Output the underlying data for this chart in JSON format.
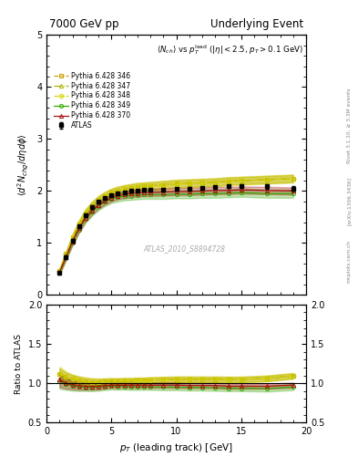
{
  "title_left": "7000 GeV pp",
  "title_right": "Underlying Event",
  "ylabel_main": "\\langle d^2 N_{chg}/d\\eta d\\phi \\rangle",
  "ylabel_ratio": "Ratio to ATLAS",
  "xlabel": "p_{T} (leading track) [GeV]",
  "watermark": "ATLAS_2010_S8894728",
  "pt_atlas": [
    1.0,
    1.5,
    2.0,
    2.5,
    3.0,
    3.5,
    4.0,
    4.5,
    5.0,
    5.5,
    6.0,
    6.5,
    7.0,
    7.5,
    8.0,
    9.0,
    10.0,
    11.0,
    12.0,
    13.0,
    14.0,
    15.0,
    17.0,
    19.0
  ],
  "nch_atlas": [
    0.42,
    0.73,
    1.05,
    1.32,
    1.54,
    1.69,
    1.8,
    1.87,
    1.92,
    1.96,
    1.98,
    2.0,
    2.01,
    2.02,
    2.02,
    2.03,
    2.04,
    2.05,
    2.06,
    2.07,
    2.09,
    2.1,
    2.09,
    2.05
  ],
  "atlas_err": [
    0.03,
    0.03,
    0.03,
    0.03,
    0.03,
    0.03,
    0.02,
    0.02,
    0.02,
    0.02,
    0.02,
    0.02,
    0.02,
    0.02,
    0.02,
    0.02,
    0.02,
    0.02,
    0.02,
    0.02,
    0.03,
    0.03,
    0.04,
    0.05
  ],
  "pt_mc": [
    1.0,
    1.5,
    2.0,
    2.5,
    3.0,
    3.5,
    4.0,
    4.5,
    5.0,
    5.5,
    6.0,
    6.5,
    7.0,
    7.5,
    8.0,
    9.0,
    10.0,
    11.0,
    12.0,
    13.0,
    14.0,
    15.0,
    17.0,
    19.0
  ],
  "nch_346": [
    0.47,
    0.79,
    1.11,
    1.37,
    1.57,
    1.72,
    1.83,
    1.91,
    1.97,
    2.01,
    2.04,
    2.06,
    2.08,
    2.09,
    2.1,
    2.12,
    2.14,
    2.15,
    2.16,
    2.17,
    2.19,
    2.2,
    2.22,
    2.24
  ],
  "nch_347": [
    0.47,
    0.79,
    1.11,
    1.37,
    1.58,
    1.72,
    1.83,
    1.91,
    1.97,
    2.01,
    2.04,
    2.06,
    2.08,
    2.09,
    2.1,
    2.12,
    2.14,
    2.15,
    2.16,
    2.17,
    2.19,
    2.2,
    2.22,
    2.24
  ],
  "nch_348": [
    0.47,
    0.79,
    1.11,
    1.37,
    1.58,
    1.72,
    1.83,
    1.91,
    1.97,
    2.01,
    2.04,
    2.06,
    2.08,
    2.09,
    2.1,
    2.12,
    2.14,
    2.15,
    2.16,
    2.17,
    2.19,
    2.2,
    2.22,
    2.24
  ],
  "nch_349": [
    0.43,
    0.72,
    1.01,
    1.26,
    1.46,
    1.6,
    1.71,
    1.79,
    1.85,
    1.88,
    1.9,
    1.91,
    1.92,
    1.93,
    1.93,
    1.93,
    1.94,
    1.94,
    1.95,
    1.95,
    1.96,
    1.97,
    1.95,
    1.95
  ],
  "nch_370": [
    0.44,
    0.73,
    1.03,
    1.28,
    1.48,
    1.62,
    1.73,
    1.81,
    1.87,
    1.91,
    1.93,
    1.95,
    1.96,
    1.97,
    1.97,
    1.98,
    1.99,
    1.99,
    2.0,
    2.01,
    2.01,
    2.02,
    2.01,
    2.0
  ],
  "band_346_lo": [
    0.44,
    0.75,
    1.06,
    1.31,
    1.51,
    1.65,
    1.76,
    1.84,
    1.9,
    1.94,
    1.97,
    1.99,
    2.01,
    2.02,
    2.03,
    2.05,
    2.07,
    2.08,
    2.09,
    2.1,
    2.12,
    2.13,
    2.15,
    2.17
  ],
  "band_346_hi": [
    0.5,
    0.83,
    1.16,
    1.43,
    1.63,
    1.79,
    1.9,
    1.98,
    2.04,
    2.08,
    2.11,
    2.13,
    2.15,
    2.16,
    2.17,
    2.19,
    2.21,
    2.22,
    2.23,
    2.24,
    2.26,
    2.27,
    2.29,
    2.31
  ],
  "band_347_lo": [
    0.44,
    0.75,
    1.06,
    1.31,
    1.51,
    1.65,
    1.76,
    1.84,
    1.9,
    1.94,
    1.97,
    1.99,
    2.01,
    2.02,
    2.03,
    2.05,
    2.07,
    2.08,
    2.09,
    2.1,
    2.12,
    2.13,
    2.15,
    2.17
  ],
  "band_347_hi": [
    0.5,
    0.83,
    1.16,
    1.43,
    1.65,
    1.79,
    1.9,
    1.98,
    2.04,
    2.08,
    2.11,
    2.13,
    2.15,
    2.16,
    2.17,
    2.19,
    2.21,
    2.22,
    2.23,
    2.24,
    2.26,
    2.27,
    2.29,
    2.31
  ],
  "band_348_lo": [
    0.43,
    0.74,
    1.05,
    1.3,
    1.5,
    1.64,
    1.75,
    1.83,
    1.89,
    1.93,
    1.96,
    1.98,
    2.0,
    2.01,
    2.02,
    2.04,
    2.06,
    2.07,
    2.08,
    2.09,
    2.11,
    2.12,
    2.14,
    2.16
  ],
  "band_348_hi": [
    0.51,
    0.84,
    1.17,
    1.44,
    1.66,
    1.8,
    1.91,
    1.99,
    2.05,
    2.09,
    2.12,
    2.14,
    2.16,
    2.17,
    2.18,
    2.2,
    2.22,
    2.23,
    2.24,
    2.25,
    2.27,
    2.28,
    2.3,
    2.32
  ],
  "band_349_lo": [
    0.39,
    0.67,
    0.95,
    1.19,
    1.39,
    1.52,
    1.63,
    1.71,
    1.77,
    1.8,
    1.82,
    1.83,
    1.84,
    1.85,
    1.85,
    1.85,
    1.86,
    1.86,
    1.87,
    1.87,
    1.88,
    1.89,
    1.87,
    1.87
  ],
  "band_349_hi": [
    0.47,
    0.77,
    1.07,
    1.33,
    1.53,
    1.68,
    1.79,
    1.87,
    1.93,
    1.96,
    1.98,
    1.99,
    2.0,
    2.01,
    2.01,
    2.01,
    2.02,
    2.02,
    2.03,
    2.03,
    2.04,
    2.05,
    2.03,
    2.03
  ],
  "band_370_lo": [
    0.4,
    0.68,
    0.97,
    1.21,
    1.41,
    1.55,
    1.66,
    1.74,
    1.8,
    1.84,
    1.86,
    1.88,
    1.89,
    1.9,
    1.9,
    1.91,
    1.92,
    1.92,
    1.93,
    1.94,
    1.94,
    1.95,
    1.94,
    1.93
  ],
  "band_370_hi": [
    0.48,
    0.78,
    1.09,
    1.35,
    1.55,
    1.69,
    1.8,
    1.88,
    1.94,
    1.98,
    2.0,
    2.02,
    2.03,
    2.04,
    2.04,
    2.05,
    2.06,
    2.06,
    2.07,
    2.08,
    2.08,
    2.09,
    2.08,
    2.07
  ],
  "color_346": "#c8a000",
  "color_347": "#b0b000",
  "color_348": "#d4d400",
  "color_349": "#33aa00",
  "color_370": "#aa1111",
  "color_atlas": "#000000",
  "bg_color": "#ffffff",
  "ylim_main": [
    0,
    5
  ],
  "ylim_ratio": [
    0.5,
    2.0
  ],
  "xlim": [
    0,
    20
  ],
  "yticks_main": [
    0,
    1,
    2,
    3,
    4,
    5
  ],
  "yticks_ratio": [
    0.5,
    1.0,
    1.5,
    2.0
  ],
  "xticks": [
    0,
    5,
    10,
    15,
    20
  ]
}
